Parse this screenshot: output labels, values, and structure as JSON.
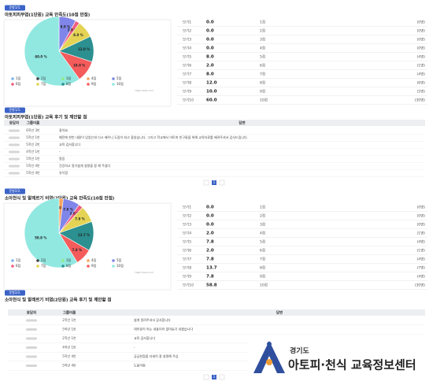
{
  "chart_data": [
    {
      "type": "pie",
      "badge": "문항1/1.",
      "title": "아토피피부염(1단원) 교육 만족도(10점 만점)",
      "categories": [
        "1점",
        "2점",
        "3점",
        "4점",
        "5점",
        "6점",
        "7점",
        "8점",
        "9점",
        "10점"
      ],
      "values": [
        0,
        0,
        0,
        0,
        8,
        2,
        8,
        12,
        10,
        60
      ],
      "value_labels": [
        null,
        null,
        null,
        null,
        "8.0 %",
        "2.0 %",
        "8.0 %",
        "12.0 %",
        "10.0 %",
        "60.0 %"
      ],
      "colors": [
        "#7cb5ec",
        "#434348",
        "#90ed7d",
        "#f7a35c",
        "#8085e9",
        "#f15c80",
        "#e4d354",
        "#2b908f",
        "#f45b5b",
        "#91e8e1"
      ],
      "legend": "bottom",
      "credit": "Highcharts.com"
    },
    {
      "type": "pie",
      "badge": "문항2/2.",
      "title": "소아천식 및 알레르기 비염(2단원) 교육 만족도(10점 만점)",
      "categories": [
        "1점",
        "2점",
        "3점",
        "4점",
        "5점",
        "6점",
        "7점",
        "8점",
        "9점",
        "10점"
      ],
      "values": [
        0,
        0,
        0,
        2,
        7.8,
        2,
        7.8,
        13.7,
        7.8,
        58.8
      ],
      "value_labels": [
        null,
        null,
        null,
        "2.0 %",
        "7.8 %",
        "2.0 %",
        "7.8 %",
        "13.7 %",
        "7.8 %",
        "58.8 %"
      ],
      "colors": [
        "#7cb5ec",
        "#434348",
        "#90ed7d",
        "#f7a35c",
        "#8085e9",
        "#f15c80",
        "#e4d354",
        "#2b908f",
        "#f45b5b",
        "#91e8e1"
      ],
      "legend": "bottom",
      "credit": "Highcharts.com"
    }
  ],
  "score_tables": [
    {
      "rows": [
        [
          "보기1",
          "0.0",
          "1점",
          "(0명)"
        ],
        [
          "보기2",
          "0.0",
          "2점",
          "(0명)"
        ],
        [
          "보기3",
          "0.0",
          "3점",
          "(0명)"
        ],
        [
          "보기4",
          "0.0",
          "4점",
          "(0명)"
        ],
        [
          "보기5",
          "8.0",
          "5점",
          "(4명)"
        ],
        [
          "보기6",
          "2.0",
          "6점",
          "(1명)"
        ],
        [
          "보기7",
          "8.0",
          "7점",
          "(4명)"
        ],
        [
          "보기8",
          "12.0",
          "8점",
          "(6명)"
        ],
        [
          "보기9",
          "10.0",
          "9점",
          "(5명)"
        ],
        [
          "보기10",
          "60.0",
          "10점",
          "(30명)"
        ]
      ]
    },
    {
      "rows": [
        [
          "보기1",
          "0.0",
          "1점",
          "(0명)"
        ],
        [
          "보기2",
          "0.0",
          "2점",
          "(0명)"
        ],
        [
          "보기3",
          "0.0",
          "3점",
          "(0명)"
        ],
        [
          "보기4",
          "2.0",
          "4점",
          "(1명)"
        ],
        [
          "보기5",
          "7.8",
          "5점",
          "(4명)"
        ],
        [
          "보기6",
          "2.0",
          "6점",
          "(1명)"
        ],
        [
          "보기7",
          "7.8",
          "7점",
          "(4명)"
        ],
        [
          "보기8",
          "13.7",
          "8점",
          "(7명)"
        ],
        [
          "보기9",
          "7.8",
          "9점",
          "(4명)"
        ],
        [
          "보기10",
          "58.8",
          "10점",
          "(30명)"
        ]
      ]
    }
  ],
  "comments": [
    {
      "badge": "문항1/1.",
      "title": "아토피피부염(1단원) 교육 후기 및 제안할 점",
      "header": [
        "응답자",
        "그룹이름",
        "답변"
      ],
      "rows": [
        [
          "6학년 3반",
          "좋아요."
        ],
        [
          "5학년 1반",
          "예전에 한번 내용이 있었는데 다시 배우니 도움이 되고 좋았습니다. 그리고 학교에서 아토피 친구들을 위해 교육자료를 배려주셔서 감사드립니다."
        ],
        [
          "5학년 2반",
          "교육 감사합니다"
        ],
        [
          "4학년 1반",
          "-"
        ],
        [
          "5학년 1반",
          "알음"
        ],
        [
          "5학년 4반",
          "건강하고 알기쉽게 설명을 잘 해 주셨다"
        ],
        [
          "5학년 4반",
          "유익함"
        ]
      ],
      "page": "1"
    },
    {
      "badge": "문항2/2.",
      "title": "소아천식 및 알레르기 비염(2단원) 교육 후기 및 제안할 점",
      "header": [
        "응답자",
        "그룹이름",
        "답변"
      ],
      "rows": [
        [
          "2학년 1반",
          "쉽게 알려주셔서 감사합니다"
        ],
        [
          "5학년 1반",
          "대부분이 아는 내용이라 알아듣기 쉬웠습니다"
        ],
        [
          "2학년 1반",
          "교육 감사합니다"
        ],
        [
          "4학년 1반",
          "-"
        ],
        [
          "5학년 4반",
          "궁금한점을 자세히 잘 설명해 주심"
        ],
        [
          "5학년 4반",
          "도움이됨"
        ]
      ],
      "page": "1"
    }
  ],
  "logo": {
    "region": "경기도",
    "name": "아토피·천식 교육정보센터"
  }
}
